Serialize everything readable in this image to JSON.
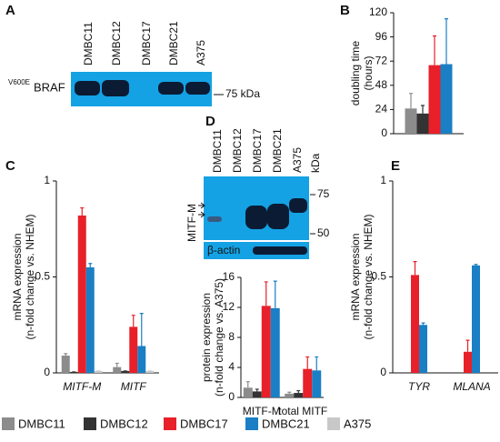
{
  "panels": [
    "A",
    "B",
    "C",
    "D",
    "E"
  ],
  "blots": {
    "A": {
      "lanes": [
        "DMBC11",
        "DMBC12",
        "DMBC17",
        "DMBC21",
        "A375"
      ],
      "protein_sup": "V600E",
      "protein": "BRAF",
      "marker": "75 kDa"
    },
    "D": {
      "lanes": [
        "DMBC11",
        "DMBC12",
        "DMBC17",
        "DMBC21",
        "A375"
      ],
      "unit": "kDa",
      "markers": [
        "75",
        "50"
      ],
      "target": "MITF-M",
      "loading": "β-actin"
    }
  },
  "chart_data": [
    {
      "type": "bar",
      "y_label": [
        "doubling time",
        "(hours)"
      ],
      "categories": [
        null
      ],
      "ylim": [
        0,
        120
      ],
      "yticks": [
        0,
        24,
        48,
        72,
        96,
        120
      ],
      "series": [
        {
          "name": "DMBC11",
          "color": "#8c8c8c",
          "values": [
            25
          ],
          "errors": [
            15
          ]
        },
        {
          "name": "DMBC12",
          "color": "#333333",
          "values": [
            20
          ],
          "errors": [
            8
          ]
        },
        {
          "name": "DMBC17",
          "color": "#e8202a",
          "values": [
            68
          ],
          "errors": [
            29
          ]
        },
        {
          "name": "DMBC21",
          "color": "#1a7fc4",
          "values": [
            69
          ],
          "errors": [
            45
          ]
        }
      ]
    },
    {
      "type": "bar",
      "y_label": [
        "mRNA expression",
        "(n-fold change vs. NHEM)"
      ],
      "categories": [
        "MITF-M",
        "MITF"
      ],
      "italic_categories": true,
      "ylim": [
        0,
        1
      ],
      "yticks": [
        0,
        0.5,
        1
      ],
      "series": [
        {
          "name": "DMBC11",
          "color": "#8c8c8c",
          "values": [
            0.09,
            0.03
          ],
          "errors": [
            0.01,
            0.02
          ]
        },
        {
          "name": "DMBC12",
          "color": "#333333",
          "values": [
            0.005,
            0.01
          ],
          "errors": [
            0,
            0
          ]
        },
        {
          "name": "DMBC17",
          "color": "#e8202a",
          "values": [
            0.82,
            0.24
          ],
          "errors": [
            0.04,
            0.06
          ]
        },
        {
          "name": "DMBC21",
          "color": "#1a7fc4",
          "values": [
            0.55,
            0.14
          ],
          "errors": [
            0.02,
            0.17
          ]
        },
        {
          "name": "A375",
          "color": "#c8c8c8",
          "values": [
            0.01,
            0.01
          ],
          "errors": [
            0,
            0
          ]
        }
      ]
    },
    {
      "type": "bar",
      "y_label": [
        "protein expression",
        "(n-fold change vs. A375)"
      ],
      "categories": [
        "MITF-M",
        "total MITF"
      ],
      "ylim": [
        0,
        16
      ],
      "yticks": [
        0,
        4,
        8,
        12,
        16
      ],
      "series": [
        {
          "name": "DMBC11",
          "color": "#8c8c8c",
          "values": [
            1.3,
            0.5
          ],
          "errors": [
            0.8,
            0.2
          ]
        },
        {
          "name": "DMBC12",
          "color": "#333333",
          "values": [
            0.8,
            0.6
          ],
          "errors": [
            0.3,
            0.3
          ]
        },
        {
          "name": "DMBC17",
          "color": "#e8202a",
          "values": [
            12.2,
            3.8
          ],
          "errors": [
            3.2,
            1.6
          ]
        },
        {
          "name": "DMBC21",
          "color": "#1a7fc4",
          "values": [
            11.9,
            3.6
          ],
          "errors": [
            3.6,
            1.8
          ]
        }
      ]
    },
    {
      "type": "bar",
      "y_label": [
        "mRNA expression",
        "(n-fold change vs. NHEM)"
      ],
      "categories": [
        "TYR",
        "MLANA"
      ],
      "italic_categories": true,
      "ylim": [
        0,
        1
      ],
      "yticks": [
        0,
        0.5,
        1
      ],
      "series": [
        {
          "name": "DMBC17",
          "color": "#e8202a",
          "values": [
            0.51,
            0.11
          ],
          "errors": [
            0.07,
            0.06
          ]
        },
        {
          "name": "DMBC21",
          "color": "#1a7fc4",
          "values": [
            0.25,
            0.56
          ],
          "errors": [
            0.01,
            0.005
          ]
        }
      ]
    }
  ]
}
